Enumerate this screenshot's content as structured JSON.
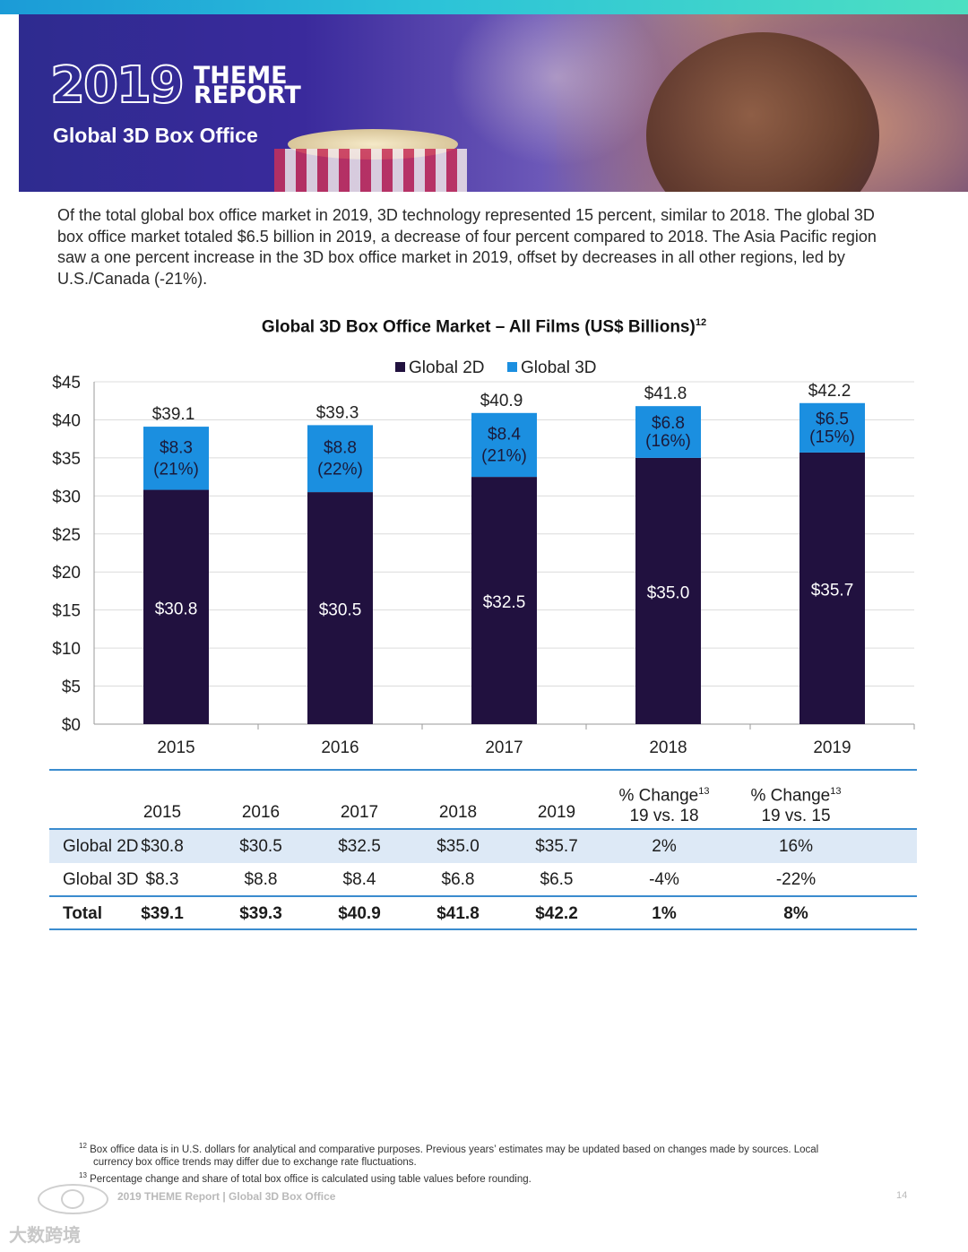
{
  "banner": {
    "year": "2019",
    "theme_line1": "THEME",
    "theme_line2": "REPORT",
    "section_title": "Global 3D Box Office"
  },
  "intro": "Of the total global box office market in 2019, 3D technology represented 15 percent, similar to 2018. The global 3D box office market totaled $6.5 billion in 2019, a decrease of four percent compared to 2018. The Asia Pacific region saw a one percent increase in the 3D box office market in 2019, offset by decreases in all other regions, led by U.S./Canada (-21%).",
  "chart_title": "Global 3D Box Office Market – All Films (US$ Billions)",
  "chart_title_sup": "12",
  "chart_data": {
    "type": "bar",
    "stacked": true,
    "title": "Global 3D Box Office Market – All Films (US$ Billions)",
    "categories": [
      "2015",
      "2016",
      "2017",
      "2018",
      "2019"
    ],
    "series": [
      {
        "name": "Global 2D",
        "color": "#21113f",
        "values": [
          30.8,
          30.5,
          32.5,
          35.0,
          35.7
        ],
        "labels": [
          "$30.8",
          "$30.5",
          "$32.5",
          "$35.0",
          "$35.7"
        ]
      },
      {
        "name": "Global 3D",
        "color": "#1b8fe0",
        "values": [
          8.3,
          8.8,
          8.4,
          6.8,
          6.5
        ],
        "labels": [
          "$8.3",
          "$8.8",
          "$8.4",
          "$6.8",
          "$6.5"
        ],
        "share_labels": [
          "(21%)",
          "(22%)",
          "(21%)",
          "(16%)",
          "(15%)"
        ]
      }
    ],
    "totals": [
      39.1,
      39.3,
      40.9,
      41.8,
      42.2
    ],
    "total_labels": [
      "$39.1",
      "$39.3",
      "$40.9",
      "$41.8",
      "$42.2"
    ],
    "yticks": [
      0,
      5,
      10,
      15,
      20,
      25,
      30,
      35,
      40,
      45
    ],
    "ytick_labels": [
      "$0",
      "$5",
      "$10",
      "$15",
      "$20",
      "$25",
      "$30",
      "$35",
      "$40",
      "$45"
    ],
    "ylim": [
      0,
      45
    ],
    "legend_position": "top-center",
    "grid": true,
    "xlabel": "",
    "ylabel": ""
  },
  "table": {
    "headers": [
      "2015",
      "2016",
      "2017",
      "2018",
      "2019"
    ],
    "change_headers": [
      {
        "line1": "% Change",
        "sup": "13",
        "line2": "19 vs. 18"
      },
      {
        "line1": "% Change",
        "sup": "13",
        "line2": "19 vs. 15"
      }
    ],
    "rows": [
      {
        "label": "Global 2D",
        "values": [
          "$30.8",
          "$30.5",
          "$32.5",
          "$35.0",
          "$35.7",
          "2%",
          "16%"
        ]
      },
      {
        "label": "Global 3D",
        "values": [
          "$8.3",
          "$8.8",
          "$8.4",
          "$6.8",
          "$6.5",
          "-4%",
          "-22%"
        ]
      },
      {
        "label": "Total",
        "values": [
          "$39.1",
          "$39.3",
          "$40.9",
          "$41.8",
          "$42.2",
          "1%",
          "8%"
        ]
      }
    ]
  },
  "footnotes": [
    {
      "num": "12",
      "text": "Box office data is in U.S. dollars for analytical and comparative purposes. Previous years’ estimates may be updated based on changes made by sources. Local",
      "cont": "currency box office trends may differ due to exchange rate fluctuations."
    },
    {
      "num": "13",
      "text": "Percentage change and share of total box office is calculated using table values before rounding."
    }
  ],
  "footer": {
    "text": "2019 THEME Report | Global 3D Box Office",
    "page": "14"
  },
  "watermark": "大数跨境"
}
